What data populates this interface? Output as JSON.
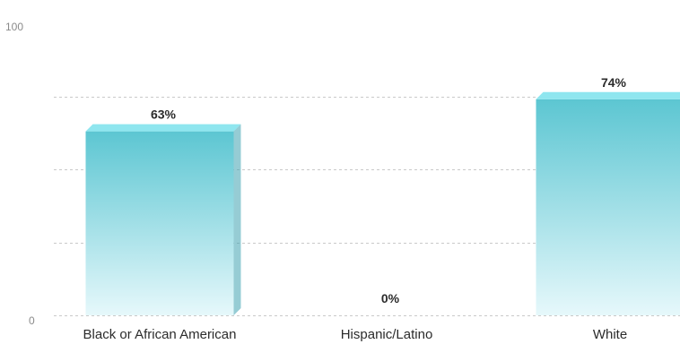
{
  "chart_data": {
    "type": "bar",
    "categories": [
      "Black or African American",
      "Hispanic/Latino",
      "White"
    ],
    "values": [
      63,
      0,
      74
    ],
    "data_labels": [
      "63%",
      "0%",
      "74%"
    ],
    "ylim": [
      0,
      100
    ],
    "y_ticks": [
      "0",
      "100"
    ],
    "grid": true,
    "gridline_values": [
      25,
      50,
      75
    ],
    "bar_style": "3d-gradient",
    "colors": {
      "bar_top": "#5cc6d2",
      "bar_bottom": "#e6f8fb",
      "bar_cap": "#8fe6ef",
      "bar_side": "#3fa3b0"
    },
    "title": "",
    "xlabel": "",
    "ylabel": ""
  }
}
